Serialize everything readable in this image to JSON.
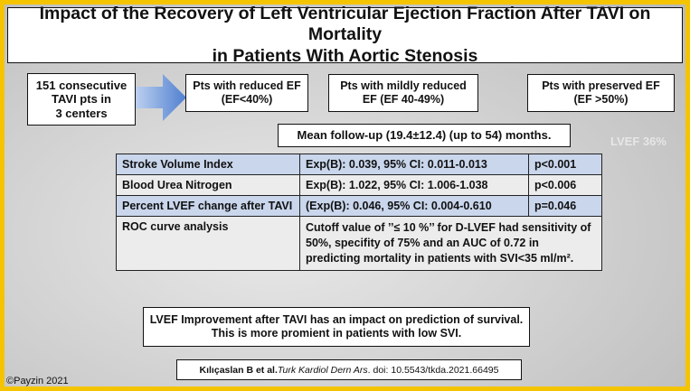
{
  "title": {
    "lines": [
      "Impact of the Recovery of Left Ventricular Ejection Fraction After TAVI on Mortality",
      "in Patients With Aortic Stenosis"
    ]
  },
  "cohort": {
    "lines": [
      "151 consecutive",
      "TAVI pts in",
      "3 centers"
    ]
  },
  "groups": [
    {
      "lines": [
        "Pts with reduced EF",
        "(EF<40%)"
      ]
    },
    {
      "lines": [
        "Pts with mildly reduced",
        "EF (EF 40-49%)"
      ]
    },
    {
      "lines": [
        "Pts with preserved EF",
        "(EF >50%)"
      ]
    }
  ],
  "followup": "Mean follow-up (19.4±12.4) (up to 54) months.",
  "watermark": "LVEF 36%",
  "table": {
    "rows": [
      [
        "Stroke Volume Index",
        "Exp(B): 0.039, 95% CI: 0.011-0.013",
        "p<0.001"
      ],
      [
        "Blood Urea Nitrogen",
        "Exp(B): 1.022, 95% CI: 1.006-1.038",
        "p<0.006"
      ],
      [
        "Percent LVEF change after TAVI",
        "(Exp(B): 0.046, 95% CI: 0.004-0.610",
        "p=0.046"
      ],
      [
        "ROC curve analysis",
        "Cutoff value of ’’≤ 10 %’’ for D-LVEF had sensitivity of 50%, specifity of 75% and an AUC of 0.72 in predicting mortality in patients with SVI<35 ml/m²."
      ]
    ]
  },
  "conclusion": {
    "lines": [
      "LVEF Improvement after TAVI has an impact on prediction of survival.",
      "This is more promient in patients with low SVI."
    ]
  },
  "citation": {
    "authors": "Kılıçaslan B et al.",
    "journal": "Turk Kardiol Dern Ars",
    "doi": ". doi: 10.5543/tkda.2021.66495"
  },
  "copyright": "©Payzin 2021"
}
